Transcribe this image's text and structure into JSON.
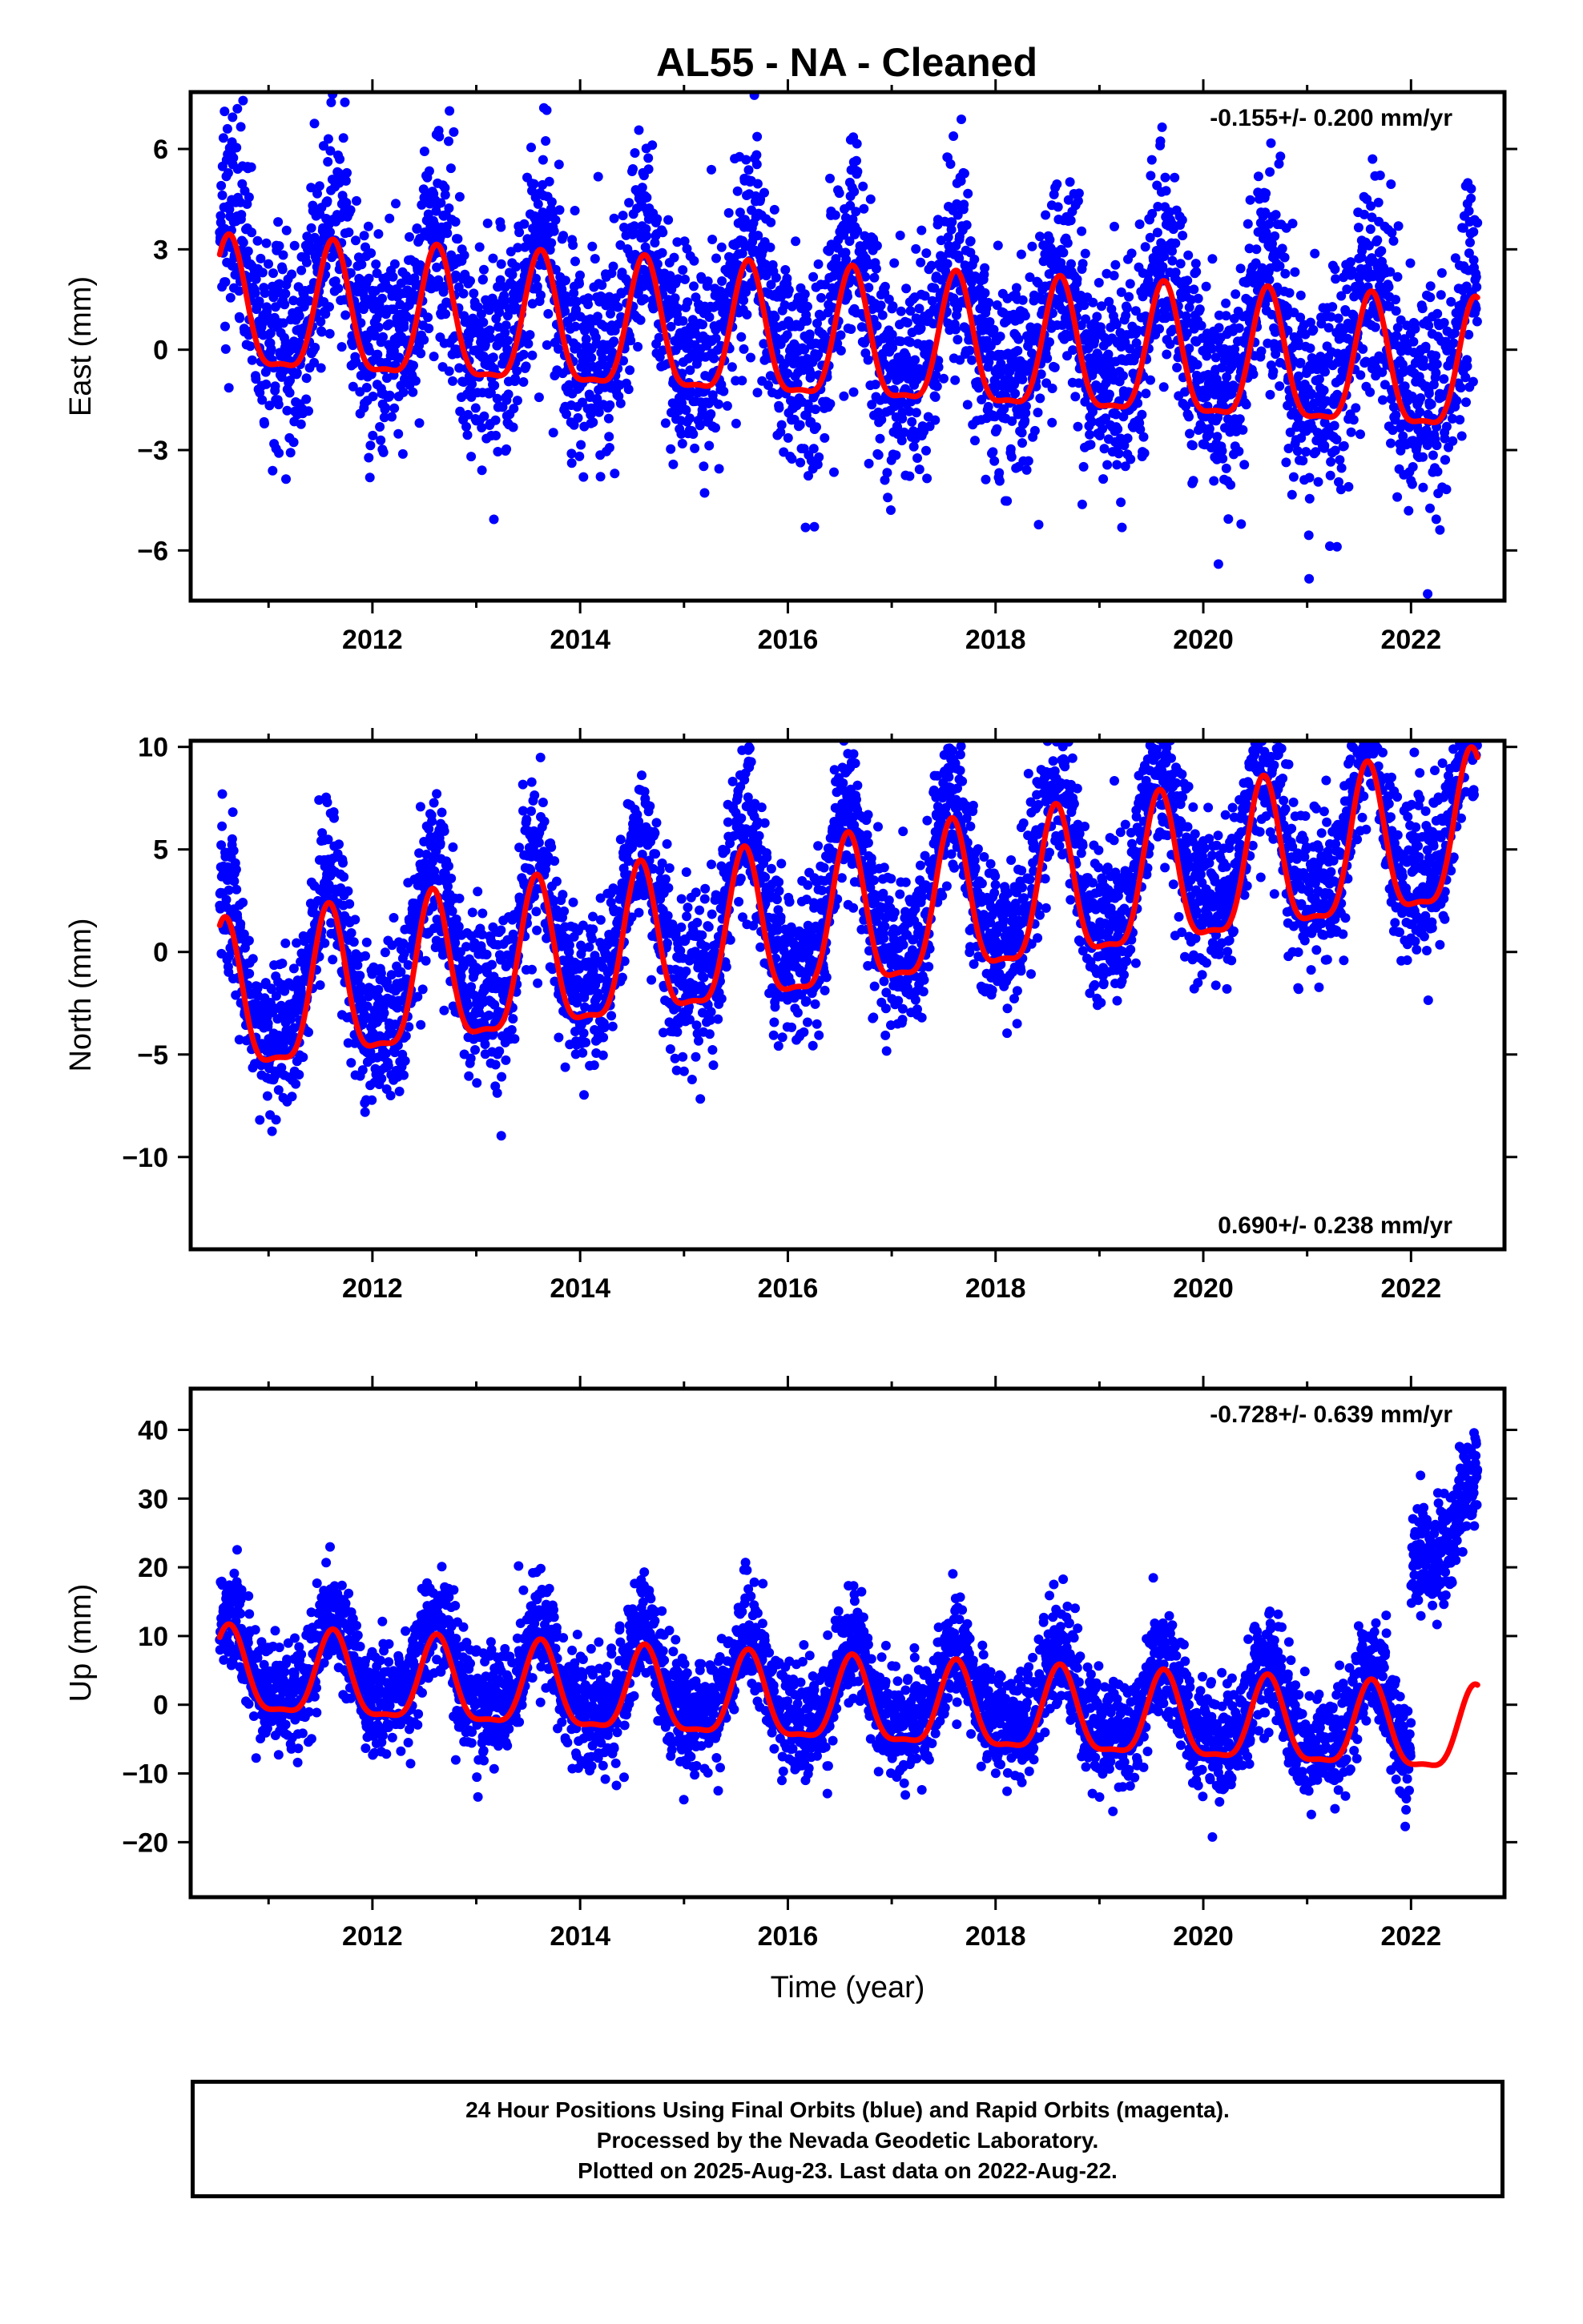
{
  "title": "AL55  - NA - Cleaned",
  "footer": {
    "line1": "24 Hour Positions Using Final Orbits (blue) and Rapid Orbits (magenta).",
    "line2": "Processed by the Nevada Geodetic Laboratory.",
    "line3": "Plotted on 2025-Aug-23. Last data on 2022-Aug-22."
  },
  "colors": {
    "observations": "#0000ff",
    "model": "#ff0000",
    "frame": "#000000"
  },
  "chart_data": [
    {
      "type": "scatter",
      "panel": "east",
      "ylabel": "East (mm)",
      "xlabel": "",
      "xlim": [
        2010.25,
        2022.9
      ],
      "ylim": [
        -7.5,
        7.7
      ],
      "xticks": [
        2012,
        2014,
        2016,
        2018,
        2020,
        2022
      ],
      "yticks": [
        -6,
        -3,
        0,
        3,
        6
      ],
      "ytick_labels": [
        "−6",
        "−3",
        "0",
        "3",
        "6"
      ],
      "rate_label": "-0.155+/- 0.200 mm/yr",
      "rate_position": "top-right",
      "series": [
        {
          "kind": "points",
          "time_range": [
            2010.53,
            2022.64
          ],
          "trend_mm_per_yr": -0.155,
          "offset_mm": 1.0,
          "annual_amplitude_mm": 1.9,
          "annual_peak_year_fraction": 0.62,
          "scatter_mm": 1.6
        },
        {
          "kind": "model",
          "time_range": [
            2010.53,
            2022.64
          ],
          "trend_mm_per_yr": -0.155,
          "offset_mm": 1.0,
          "annual_amplitude_mm": 1.9,
          "annual_peak_year_fraction": 0.62
        }
      ]
    },
    {
      "type": "scatter",
      "panel": "north",
      "ylabel": "North (mm)",
      "xlabel": "",
      "xlim": [
        2010.25,
        2022.9
      ],
      "ylim": [
        -14.5,
        10.3
      ],
      "xticks": [
        2012,
        2014,
        2016,
        2018,
        2020,
        2022
      ],
      "yticks": [
        -10,
        -5,
        0,
        5,
        10
      ],
      "ytick_labels": [
        "−10",
        "−5",
        "0",
        "5",
        "10"
      ],
      "rate_label": "0.690+/- 0.238 mm/yr",
      "rate_position": "bottom-right",
      "series": [
        {
          "kind": "points",
          "time_range": [
            2010.53,
            2022.64
          ],
          "trend_mm_per_yr": 0.69,
          "offset_mm": -3.0,
          "annual_amplitude_mm": 3.6,
          "annual_peak_year_fraction": 0.58,
          "scatter_mm": 1.9
        },
        {
          "kind": "model",
          "time_range": [
            2010.53,
            2022.64
          ],
          "trend_mm_per_yr": 0.69,
          "offset_mm": -3.0,
          "annual_amplitude_mm": 3.6,
          "annual_peak_year_fraction": 0.58
        }
      ]
    },
    {
      "type": "scatter",
      "panel": "up",
      "ylabel": "Up (mm)",
      "xlabel": "Time (year)",
      "xlim": [
        2010.25,
        2022.9
      ],
      "ylim": [
        -28,
        46
      ],
      "xticks": [
        2012,
        2014,
        2016,
        2018,
        2020,
        2022
      ],
      "yticks": [
        -20,
        -10,
        0,
        10,
        20,
        30,
        40
      ],
      "ytick_labels": [
        "−20",
        "−10",
        "0",
        "10",
        "20",
        "30",
        "40"
      ],
      "rate_label": "-0.728+/- 0.639 mm/yr",
      "rate_position": "top-right",
      "series": [
        {
          "kind": "points",
          "time_range": [
            2010.53,
            2022.64
          ],
          "trend_mm_per_yr": -0.728,
          "offset_mm": 4.0,
          "annual_amplitude_mm": 6.0,
          "annual_peak_year_fraction": 0.62,
          "scatter_mm": 4.0,
          "step_after_year": 2022.0,
          "step_mm": 28
        },
        {
          "kind": "model",
          "time_range": [
            2010.53,
            2022.64
          ],
          "trend_mm_per_yr": -0.728,
          "offset_mm": 4.0,
          "annual_amplitude_mm": 6.0,
          "annual_peak_year_fraction": 0.62
        }
      ]
    }
  ]
}
